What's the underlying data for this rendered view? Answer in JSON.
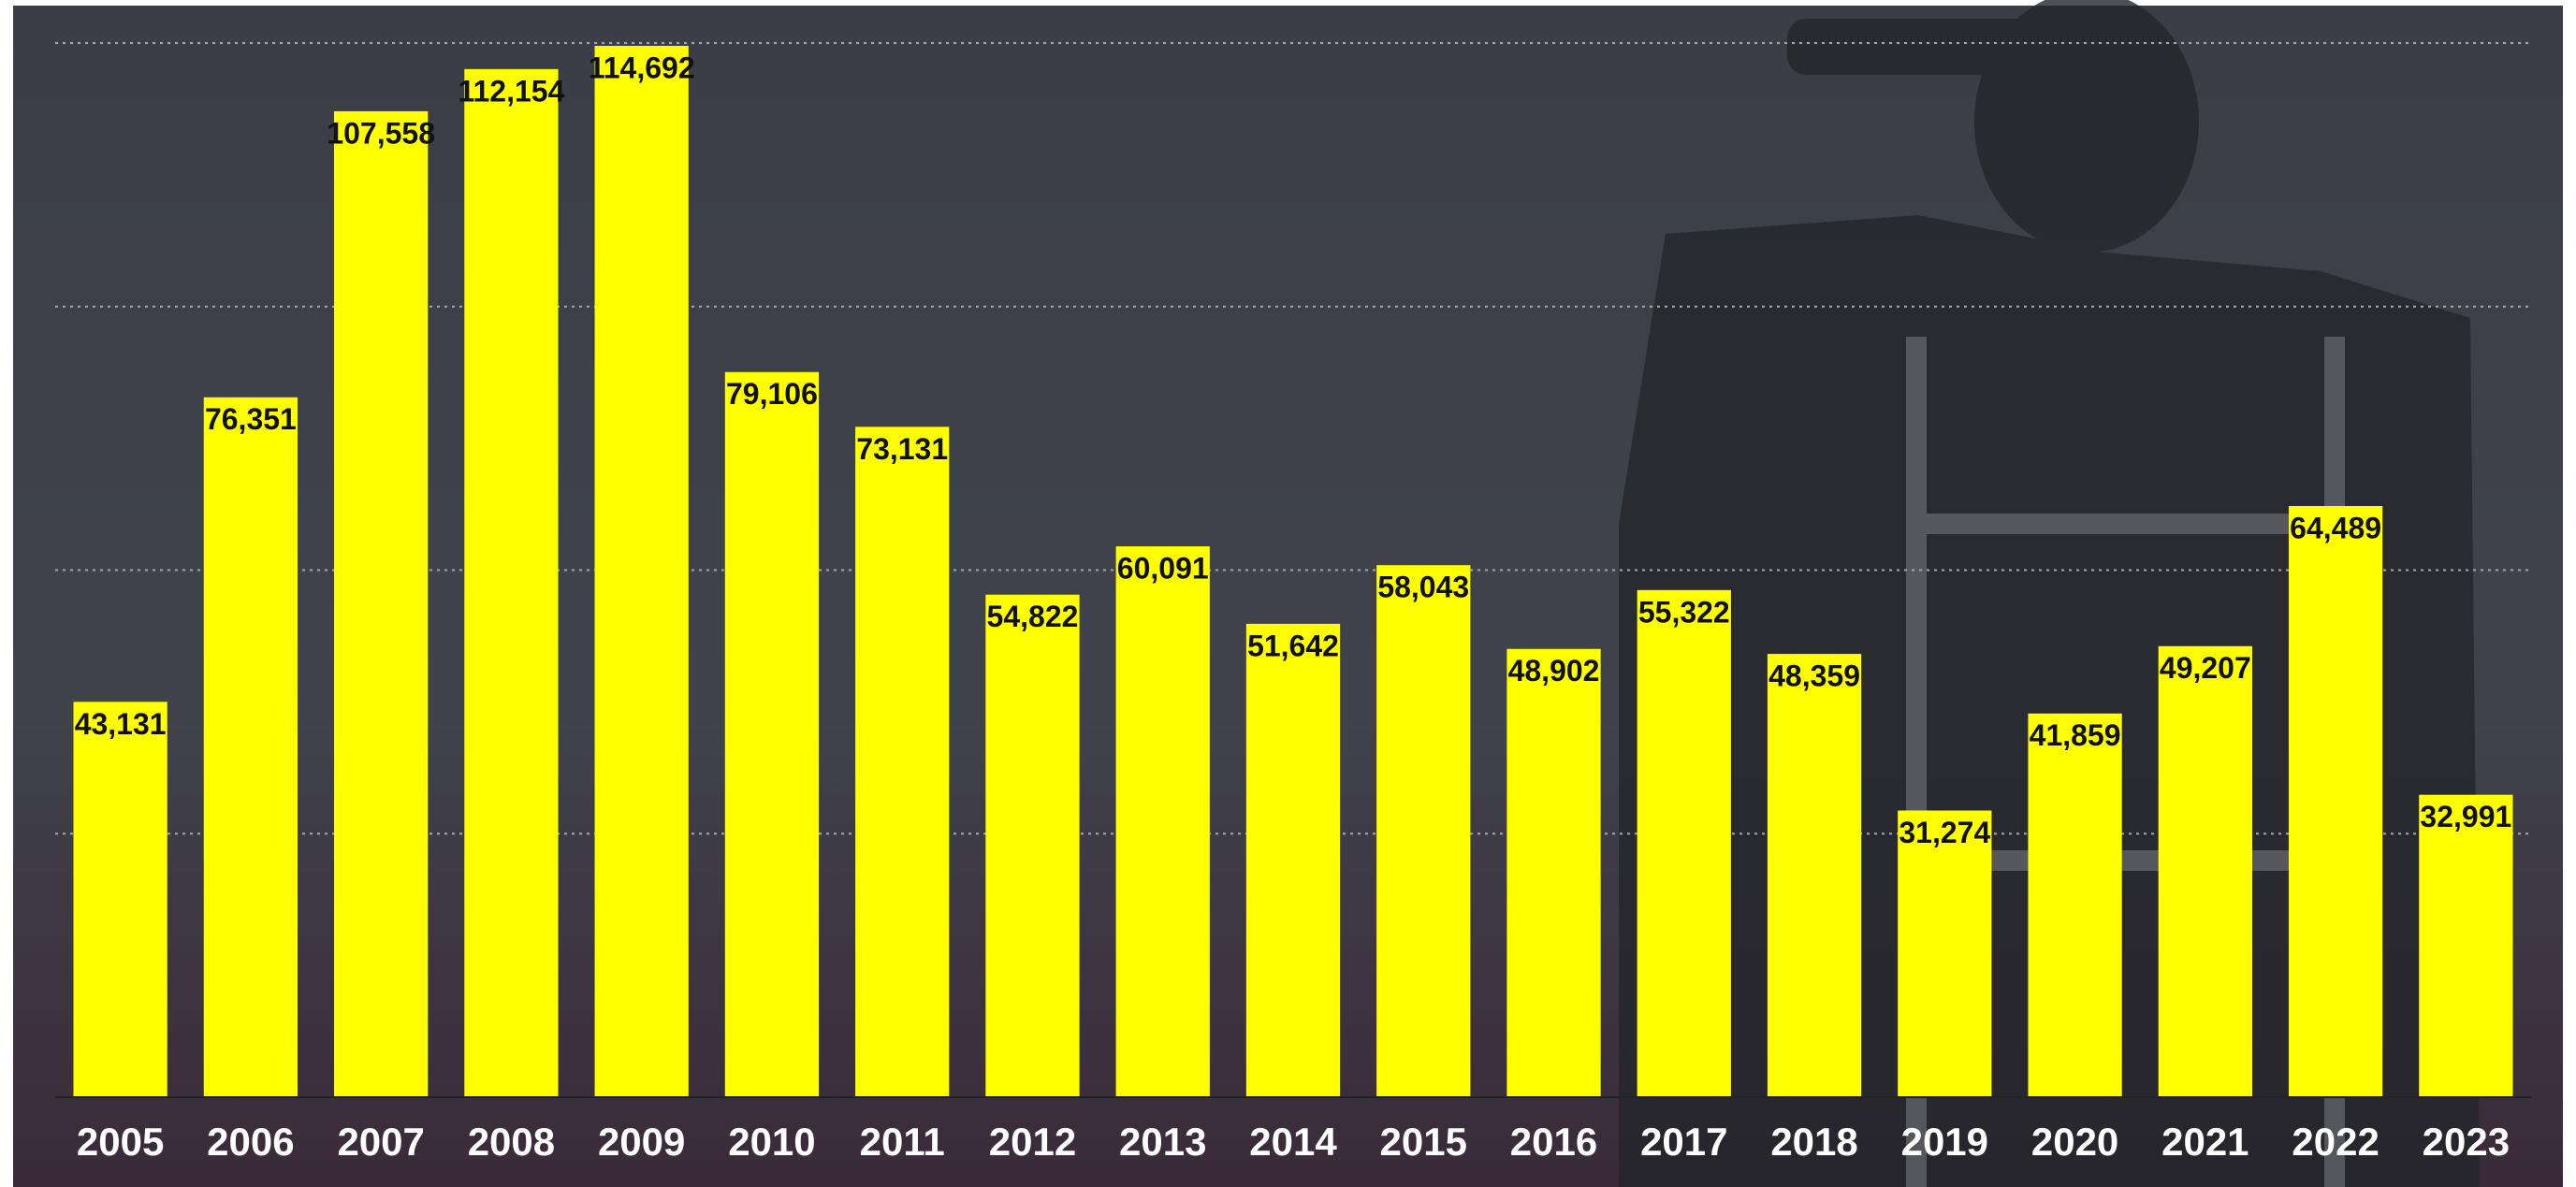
{
  "chart_data": {
    "type": "bar",
    "categories": [
      "2005",
      "2006",
      "2007",
      "2008",
      "2009",
      "2010",
      "2011",
      "2012",
      "2013",
      "2014",
      "2015",
      "2016",
      "2017",
      "2018",
      "2019",
      "2020",
      "2021",
      "2022",
      "2023"
    ],
    "values": [
      43131,
      76351,
      107558,
      112154,
      114692,
      79106,
      73131,
      54822,
      60091,
      51642,
      58043,
      48902,
      55322,
      48359,
      31274,
      41859,
      49207,
      64489,
      32991
    ],
    "value_labels": [
      "43,131",
      "76,351",
      "107,558",
      "112,154",
      "114,692",
      "79,106",
      "73,131",
      "54,822",
      "60,091",
      "51,642",
      "58,043",
      "48,902",
      "55,322",
      "48,359",
      "31,274",
      "41,859",
      "49,207",
      "64,489",
      "32,991"
    ],
    "color": "#ffff00",
    "ylim": [
      0,
      115000
    ],
    "yticks": [
      0,
      28750,
      57500,
      86250,
      115000
    ],
    "grid": true
  }
}
